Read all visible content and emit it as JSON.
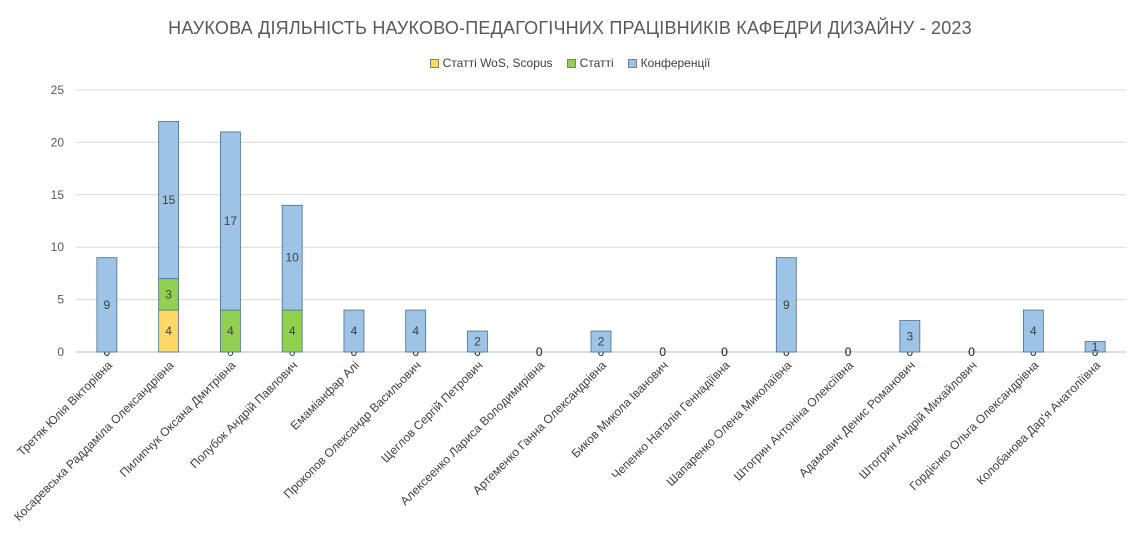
{
  "chart_data": {
    "type": "bar",
    "stacked": true,
    "title": "НАУКОВА ДІЯЛЬНІСТЬ НАУКОВО-ПЕДАГОГІЧНИХ ПРАЦІВНИКІВ КАФЕДРИ ДИЗАЙНУ - 2023",
    "xlabel": "",
    "ylabel": "",
    "ylim": [
      0,
      25
    ],
    "yticks": [
      0,
      5,
      10,
      15,
      20,
      25
    ],
    "grid": true,
    "legend_position": "top-center",
    "categories": [
      "Третяк Юлія Вікторівна",
      "Косаревська Раддаміла Олександрівна",
      "Пилипчук Оксана Дмитрівна",
      "Полубок Андрій Павлович",
      "Емаміанфар Алі",
      "Прокопов Олександр Васильович",
      "Щеглов Сергій Петрович",
      "Алексеенко Лариса Володимирівна",
      "Артеменко Ганна Олександрівна",
      "Биков Микола Іванович",
      "Чепенко Наталія Геннадіївна",
      "Шапаренко Олена Миколаївна",
      "Штогрин Антоніна Олексіївна",
      "Адамович Денис Романович",
      "Штогрин Андрій Михайлович",
      "Гордієнко Ольга Олександрівна",
      "Колобанова Дар'я Анатоліївна"
    ],
    "series": [
      {
        "name": "Статті WoS, Scopus",
        "color": "#ffd966",
        "values": [
          0,
          4,
          0,
          0,
          0,
          0,
          0,
          0,
          0,
          0,
          0,
          0,
          0,
          0,
          0,
          0,
          0
        ]
      },
      {
        "name": "Статті",
        "color": "#92d050",
        "values": [
          0,
          3,
          4,
          4,
          0,
          0,
          0,
          0,
          0,
          0,
          0,
          0,
          0,
          0,
          0,
          0,
          0
        ]
      },
      {
        "name": "Конференції",
        "color": "#9dc3e6",
        "values": [
          9,
          15,
          17,
          10,
          4,
          4,
          2,
          0,
          2,
          0,
          0,
          9,
          0,
          3,
          0,
          4,
          1
        ]
      }
    ]
  }
}
